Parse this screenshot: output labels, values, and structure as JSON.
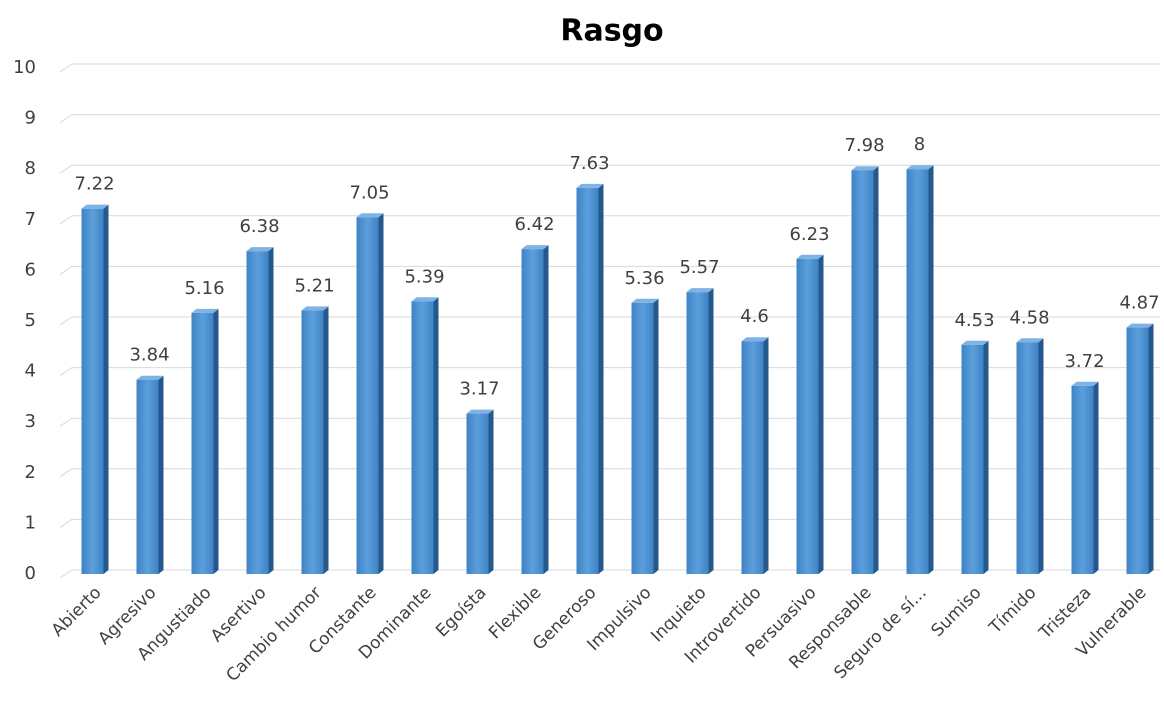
{
  "chart_data": {
    "type": "bar",
    "title": "Rasgo",
    "categories": [
      "Abierto",
      "Agresivo",
      "Angustiado",
      "Asertivo",
      "Cambio humor",
      "Constante",
      "Dominante",
      "Egoísta",
      "Flexible",
      "Generoso",
      "Impulsivo",
      "Inquieto",
      "Introvertido",
      "Persuasivo",
      "Responsable",
      "Seguro de sí...",
      "Sumiso",
      "Tímido",
      "Tristeza",
      "Vulnerable"
    ],
    "values": [
      7.22,
      3.84,
      5.16,
      6.38,
      5.21,
      7.05,
      5.39,
      3.17,
      6.42,
      7.63,
      5.36,
      5.57,
      4.6,
      6.23,
      7.98,
      8,
      4.53,
      4.58,
      3.72,
      4.87
    ],
    "color": "#4a8fd0",
    "ylim": [
      0,
      10
    ],
    "yticks": [
      0,
      1,
      2,
      3,
      4,
      5,
      6,
      7,
      8,
      9,
      10
    ],
    "grid": true
  }
}
